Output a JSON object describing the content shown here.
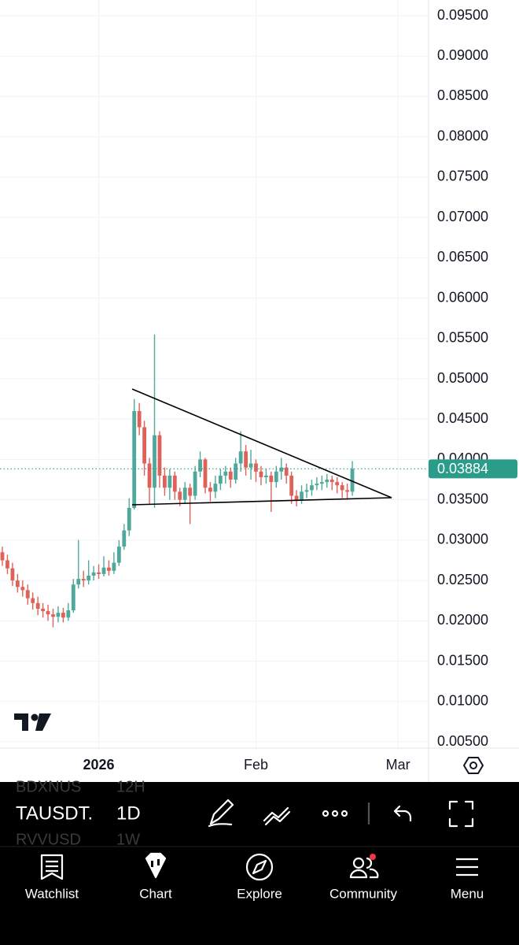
{
  "chart_data": {
    "type": "candlestick",
    "up_color": "#4fa99a",
    "down_color": "#e0605a",
    "grid": true,
    "categories": [
      null,
      null,
      null,
      null,
      null,
      null,
      null,
      null,
      null,
      null,
      null,
      null,
      null,
      null,
      null,
      null,
      null,
      null,
      null,
      "2026",
      null,
      null,
      null,
      null,
      null,
      null,
      null,
      null,
      null,
      null,
      null,
      null,
      null,
      null,
      null,
      null,
      null,
      null,
      null,
      null,
      null,
      null,
      null,
      null,
      null,
      null,
      null,
      null,
      null,
      null,
      "Feb",
      null,
      null,
      null,
      null,
      null,
      null,
      null,
      null,
      null,
      null,
      null,
      null,
      null,
      null,
      null,
      null,
      null,
      null,
      null,
      null,
      null,
      null,
      null,
      null,
      null,
      null,
      null,
      "Mar",
      null,
      null,
      null,
      null,
      null
    ],
    "open": [
      0.0285,
      0.0275,
      0.0265,
      0.025,
      0.0242,
      0.0238,
      0.0228,
      0.0222,
      0.0215,
      0.0212,
      0.0208,
      0.0205,
      0.021,
      0.0204,
      0.0213,
      0.0245,
      0.0252,
      0.025,
      0.0256,
      0.026,
      0.0258,
      0.0266,
      0.0262,
      0.0272,
      0.0292,
      0.0312,
      0.034,
      0.046,
      0.044,
      0.0395,
      0.0365,
      0.043,
      0.038,
      0.0365,
      0.038,
      0.036,
      0.035,
      0.0365,
      0.0355,
      0.0385,
      0.04,
      0.0365,
      0.036,
      0.037,
      0.038,
      0.0385,
      0.0375,
      0.0395,
      0.041,
      0.039,
      0.0395,
      0.0385,
      0.0378,
      0.038,
      0.0372,
      0.0385,
      0.039,
      0.038,
      0.0355,
      0.035,
      0.036,
      0.0362,
      0.0368,
      0.037,
      0.0372,
      0.0375,
      0.0372,
      0.0368,
      0.0362,
      0.036,
      null,
      null,
      null,
      null,
      null,
      null,
      null,
      null,
      null,
      null,
      null,
      null,
      null,
      null
    ],
    "high": [
      0.0292,
      0.0282,
      0.0272,
      0.0258,
      0.025,
      0.0245,
      0.0235,
      0.023,
      0.0222,
      0.022,
      0.0215,
      0.0218,
      0.0216,
      0.0222,
      0.0252,
      0.03,
      0.0262,
      0.0275,
      0.0268,
      0.027,
      0.028,
      0.0275,
      0.0285,
      0.03,
      0.032,
      0.0352,
      0.0475,
      0.047,
      0.0448,
      0.0402,
      0.0555,
      0.0435,
      0.039,
      0.0388,
      0.0385,
      0.0365,
      0.0372,
      0.037,
      0.0392,
      0.041,
      0.0402,
      0.0372,
      0.038,
      0.0388,
      0.0392,
      0.039,
      0.0402,
      0.0435,
      0.0418,
      0.0412,
      0.04,
      0.0392,
      0.0388,
      0.0385,
      0.0392,
      0.0402,
      0.0395,
      0.0385,
      0.0362,
      0.0368,
      0.037,
      0.0375,
      0.0378,
      0.038,
      0.0382,
      0.038,
      0.0378,
      0.0372,
      0.037,
      0.0398,
      null,
      null,
      null,
      null,
      null,
      null,
      null,
      null,
      null,
      null,
      null,
      null,
      null,
      null
    ],
    "low": [
      0.0268,
      0.0258,
      0.0243,
      0.0235,
      0.023,
      0.022,
      0.0214,
      0.0207,
      0.0204,
      0.02,
      0.0192,
      0.0198,
      0.0198,
      0.02,
      0.021,
      0.024,
      0.0242,
      0.0245,
      0.025,
      0.0252,
      0.0255,
      0.0256,
      0.0258,
      0.0268,
      0.0288,
      0.0305,
      0.0338,
      0.043,
      0.038,
      0.0345,
      0.034,
      0.0365,
      0.0355,
      0.035,
      0.035,
      0.0342,
      0.0345,
      0.032,
      0.035,
      0.0378,
      0.0358,
      0.0348,
      0.0352,
      0.0362,
      0.037,
      0.0365,
      0.037,
      0.0385,
      0.038,
      0.0375,
      0.0372,
      0.0368,
      0.037,
      0.0335,
      0.0365,
      0.0375,
      0.037,
      0.0345,
      0.0342,
      0.0345,
      0.0352,
      0.0355,
      0.0362,
      0.0362,
      0.0365,
      0.0362,
      0.0358,
      0.0352,
      0.035,
      0.0355,
      null,
      null,
      null,
      null,
      null,
      null,
      null,
      null,
      null,
      null,
      null,
      null,
      null,
      null
    ],
    "close": [
      0.0275,
      0.0265,
      0.025,
      0.0242,
      0.0238,
      0.0228,
      0.0222,
      0.0215,
      0.0212,
      0.0208,
      0.0205,
      0.021,
      0.0204,
      0.0213,
      0.0245,
      0.0252,
      0.025,
      0.0256,
      0.026,
      0.0258,
      0.0266,
      0.0262,
      0.0272,
      0.0292,
      0.0312,
      0.034,
      0.046,
      0.044,
      0.0395,
      0.0365,
      0.043,
      0.038,
      0.0365,
      0.038,
      0.036,
      0.035,
      0.0365,
      0.0355,
      0.0385,
      0.04,
      0.0365,
      0.036,
      0.037,
      0.038,
      0.0385,
      0.0375,
      0.0395,
      0.041,
      0.039,
      0.0395,
      0.0385,
      0.0378,
      0.038,
      0.0372,
      0.0385,
      0.039,
      0.038,
      0.0355,
      0.035,
      0.036,
      0.0362,
      0.0368,
      0.037,
      0.0372,
      0.0375,
      0.0372,
      0.0368,
      0.0362,
      0.036,
      0.03884,
      null,
      null,
      null,
      null,
      null,
      null,
      null,
      null,
      null,
      null,
      null,
      null,
      null,
      null
    ],
    "ylim": [
      0.005,
      0.095
    ],
    "yticks": [
      {
        "value": 0.095,
        "label": "0.09500"
      },
      {
        "value": 0.09,
        "label": "0.09000"
      },
      {
        "value": 0.085,
        "label": "0.08500"
      },
      {
        "value": 0.08,
        "label": "0.08000"
      },
      {
        "value": 0.075,
        "label": "0.07500"
      },
      {
        "value": 0.07,
        "label": "0.07000"
      },
      {
        "value": 0.065,
        "label": "0.06500"
      },
      {
        "value": 0.06,
        "label": "0.06000"
      },
      {
        "value": 0.055,
        "label": "0.05500"
      },
      {
        "value": 0.05,
        "label": "0.05000"
      },
      {
        "value": 0.045,
        "label": "0.04500"
      },
      {
        "value": 0.04,
        "label": "0.04000"
      },
      {
        "value": 0.035,
        "label": "0.03500"
      },
      {
        "value": 0.03,
        "label": "0.03000"
      },
      {
        "value": 0.025,
        "label": "0.02500"
      },
      {
        "value": 0.02,
        "label": "0.02000"
      },
      {
        "value": 0.015,
        "label": "0.01500"
      },
      {
        "value": 0.01,
        "label": "0.01000"
      },
      {
        "value": 0.005,
        "label": "0.00500"
      }
    ],
    "last_price": {
      "value": 0.03884,
      "label": "0.03884",
      "color": "#2b9c8a"
    }
  },
  "toolbar": {
    "prev_symbol": "BDXNUS",
    "prev_interval": "12H",
    "symbol": "TAUSDT.",
    "interval": "1D",
    "next_symbol": "RVVUSD",
    "next_interval": "1W"
  },
  "nav": {
    "items": [
      "Watchlist",
      "Chart",
      "Explore",
      "Community",
      "Menu"
    ]
  }
}
